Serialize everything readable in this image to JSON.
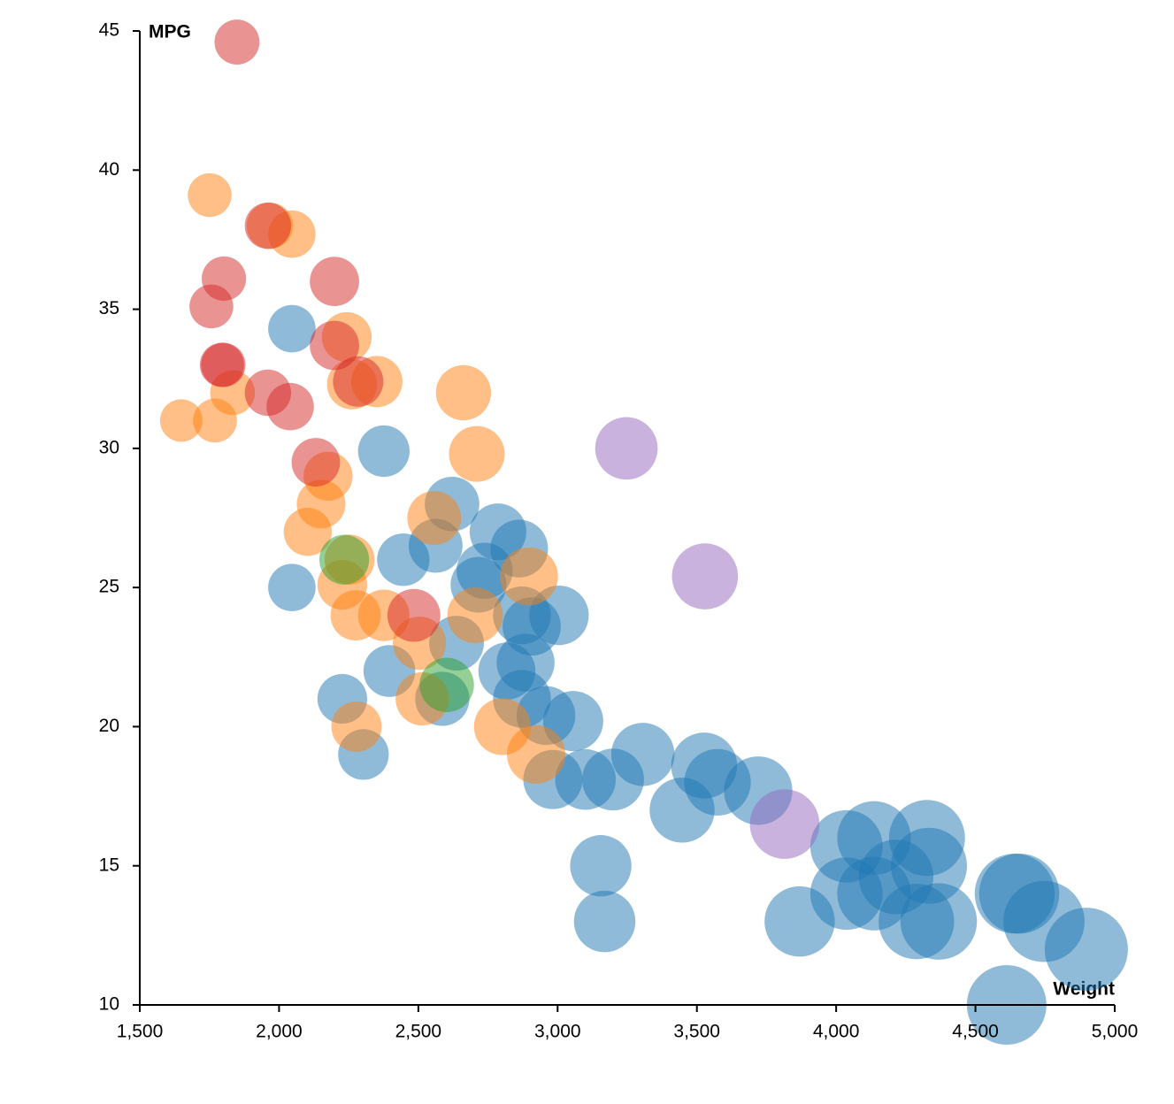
{
  "chart_data": {
    "type": "scatter",
    "xlabel": "Weight",
    "ylabel": "MPG",
    "xlim": [
      1500,
      5000
    ],
    "xticks": [
      {
        "value": 1500,
        "label": "1,500"
      },
      {
        "value": 2000,
        "label": "2,000"
      },
      {
        "value": 2500,
        "label": "2,500"
      },
      {
        "value": 3000,
        "label": "3,000"
      },
      {
        "value": 3500,
        "label": "3,500"
      },
      {
        "value": 4000,
        "label": "4,000"
      },
      {
        "value": 4500,
        "label": "4,500"
      },
      {
        "value": 5000,
        "label": "5,000"
      }
    ],
    "ylim": [
      10,
      45
    ],
    "yticks": [
      10,
      15,
      20,
      25,
      30,
      35,
      40,
      45
    ],
    "opacity": 0.5,
    "series": [
      {
        "color": "#1f77b4",
        "x": [
          2046,
          2376,
          2621,
          2446,
          2562,
          2046,
          2786,
          2862,
          2716,
          2738,
          2872,
          3005,
          2907,
          2637,
          2396,
          2885,
          2818,
          2227,
          2586,
          2872,
          2958,
          3056,
          2303,
          3306,
          2983,
          3100,
          3199,
          3526,
          3574,
          3720,
          3447,
          3155,
          3169,
          4037,
          4136,
          4326,
          4333,
          4215,
          4037,
          4136,
          3869,
          4288,
          4368,
          4641,
          4657,
          4746,
          4898,
          4612
        ],
        "values": [
          34.3,
          29.9,
          28.0,
          26.0,
          26.5,
          25.0,
          27.0,
          26.4,
          25.1,
          25.6,
          24.0,
          24.0,
          23.6,
          23.0,
          22.0,
          22.3,
          22.0,
          21.0,
          21.0,
          21.0,
          20.4,
          20.2,
          19.0,
          19.0,
          18.1,
          18.1,
          18.1,
          18.6,
          18.0,
          17.7,
          17.0,
          15.0,
          13.0,
          15.7,
          16.0,
          16.0,
          15.0,
          14.6,
          14.0,
          14.0,
          13.0,
          13.0,
          13.0,
          14.0,
          14.0,
          13.0,
          12.0,
          10.0
        ]
      },
      {
        "color": "#ff7f0e",
        "x": [
          1751,
          1967,
          2046,
          2243,
          2262,
          2351,
          1833,
          1649,
          1770,
          2662,
          2710,
          2176,
          2151,
          2103,
          2557,
          2253,
          2227,
          2897,
          2275,
          2376,
          2704,
          2504,
          2514,
          2278,
          2802,
          2923
        ],
        "values": [
          39.1,
          38.0,
          37.7,
          34.0,
          32.3,
          32.4,
          32.0,
          31.0,
          31.0,
          32.0,
          29.8,
          29.0,
          28.0,
          27.0,
          27.5,
          26.0,
          25.1,
          25.4,
          24.0,
          24.0,
          24.0,
          23.0,
          21.0,
          20.0,
          20.0,
          19.0
        ]
      },
      {
        "color": "#d62728",
        "x": [
          1849,
          1960,
          1802,
          2199,
          1757,
          2199,
          1795,
          1800,
          2284,
          1960,
          2040,
          2132,
          2484
        ],
        "values": [
          44.6,
          38.0,
          36.1,
          36.0,
          35.1,
          33.7,
          33.0,
          33.0,
          32.4,
          32.0,
          31.5,
          29.5,
          24.0
        ]
      },
      {
        "color": "#2ca02c",
        "x": [
          2234,
          2602
        ],
        "values": [
          26.0,
          21.5
        ]
      },
      {
        "color": "#9467bd",
        "x": [
          3247,
          3529,
          3815
        ],
        "values": [
          30.0,
          25.4,
          16.5
        ]
      }
    ]
  }
}
